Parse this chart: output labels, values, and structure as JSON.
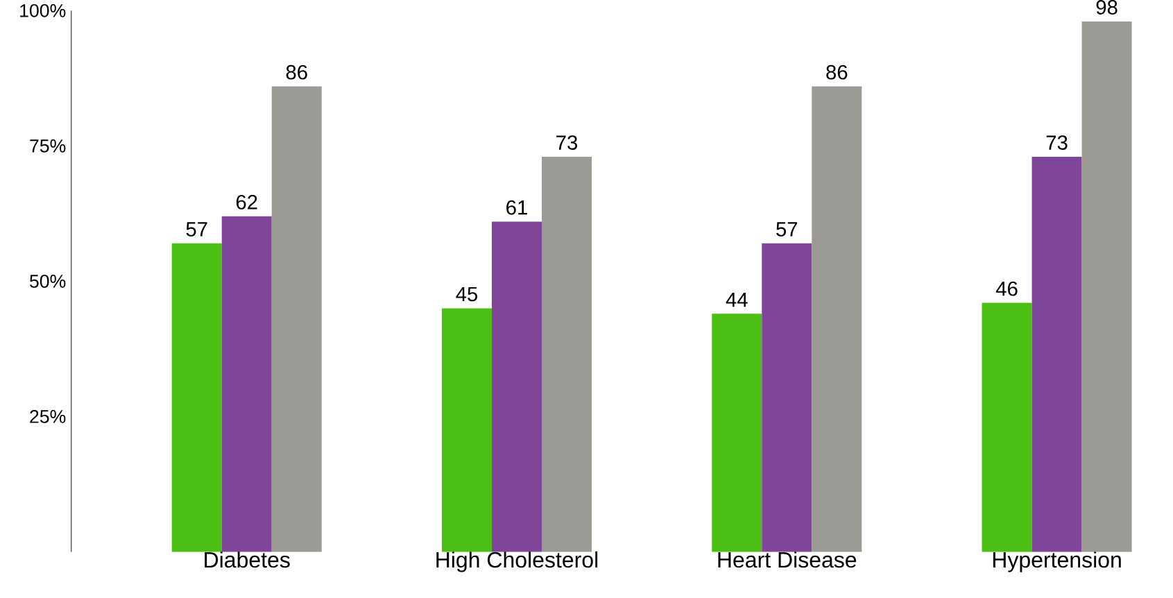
{
  "chart_data": {
    "type": "bar",
    "categories": [
      "Diabetes",
      "High Cholesterol",
      "Heart Disease",
      "Hypertension"
    ],
    "series": [
      {
        "color": "#4bbf14",
        "values": [
          57,
          45,
          44,
          46
        ]
      },
      {
        "color": "#7f4599",
        "values": [
          62,
          61,
          57,
          73
        ]
      },
      {
        "color": "#9b9a95",
        "values": [
          86,
          73,
          86,
          98
        ]
      }
    ],
    "ylim": [
      0,
      100
    ],
    "yticks": [
      {
        "value": 25,
        "label": "25%"
      },
      {
        "value": 50,
        "label": "50%"
      },
      {
        "value": 75,
        "label": "75%"
      },
      {
        "value": 100,
        "label": "100%"
      }
    ],
    "data_labels": true
  }
}
